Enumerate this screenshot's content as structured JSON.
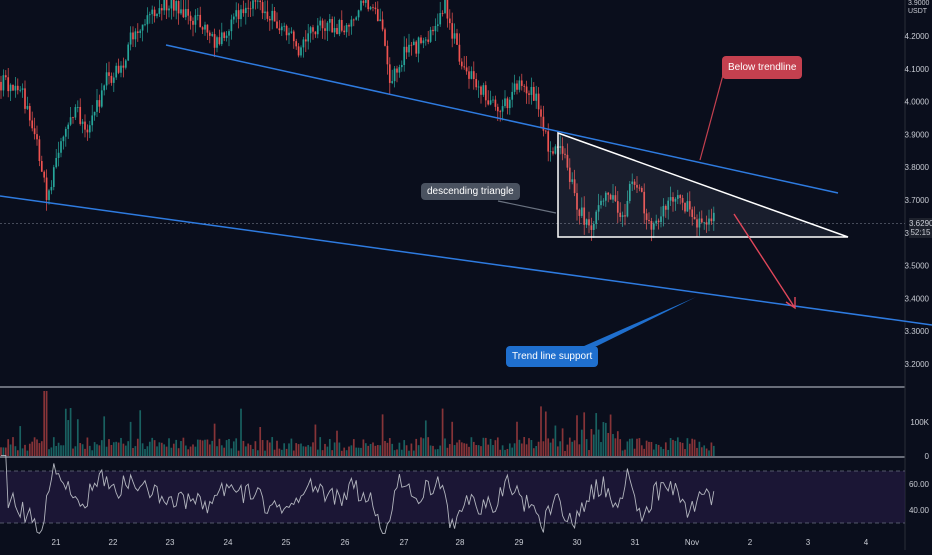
{
  "pair": {
    "top": "3.9000",
    "quote": "USDT"
  },
  "chart_data": {
    "type": "candlestick",
    "price_ticks": [
      "4.2000",
      "4.1000",
      "4.0000",
      "3.9000",
      "3.8000",
      "3.7000",
      "3.6000",
      "3.5000",
      "3.4000",
      "3.3000",
      "3.2000"
    ],
    "price_values": [
      4.2,
      4.1,
      4.0,
      3.9,
      3.8,
      3.7,
      3.6,
      3.5,
      3.4,
      3.3,
      3.2
    ],
    "x_ticks": [
      "21",
      "22",
      "23",
      "24",
      "25",
      "26",
      "27",
      "28",
      "29",
      "30",
      "31",
      "Nov",
      "2",
      "3",
      "4"
    ],
    "current_price": "3.6290",
    "countdown": "52:15",
    "volume_ticks": [
      "100K",
      "0"
    ],
    "volume_values": [
      100000,
      0
    ],
    "rsi_ticks": [
      "60.00",
      "40.00"
    ],
    "rsi_values": [
      60,
      40
    ],
    "annotations": {
      "triangle": "descending triangle",
      "below": "Below trendline",
      "support": "Trend line support"
    },
    "colors": {
      "up": "#26a69a",
      "down": "#ef5350",
      "trendline": "#2e7be0",
      "arrow": "#e0475a",
      "rsi": "#b2b5be",
      "rsi_band": "#2a1e4a"
    }
  }
}
